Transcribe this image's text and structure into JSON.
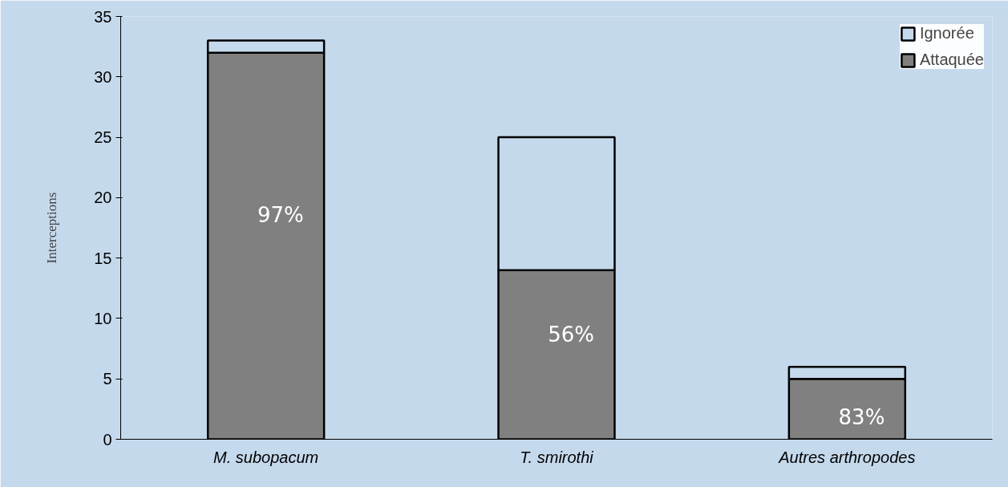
{
  "chart_data": {
    "type": "bar",
    "stacked": true,
    "ylabel": "Interceptions",
    "categories": [
      "M. subopacum",
      "T. smirothi",
      "Autres arthropodes"
    ],
    "series": [
      {
        "name": "Attaquée",
        "color": "#808080",
        "values": [
          32,
          14,
          5
        ]
      },
      {
        "name": "Ignorée",
        "color": "#c5d9ec",
        "values": [
          1,
          11,
          1
        ]
      }
    ],
    "annotations": [
      "97%",
      "56%",
      "83%"
    ],
    "ylim": [
      0,
      35
    ],
    "yticks": [
      0,
      5,
      10,
      15,
      20,
      25,
      30,
      35
    ],
    "grid": false,
    "legend": "top right"
  }
}
